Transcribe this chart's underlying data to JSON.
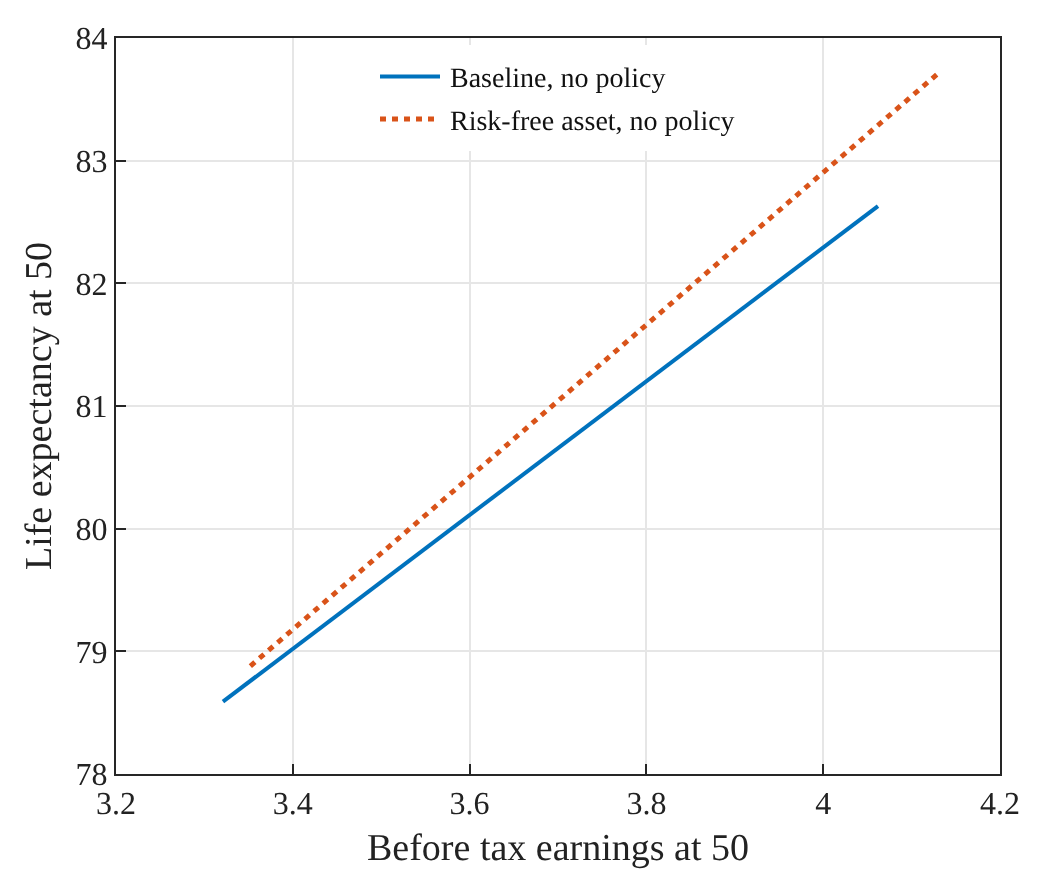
{
  "chart_data": {
    "type": "line",
    "xlabel": "Before tax earnings at 50",
    "ylabel": "Life expectancy at 50",
    "series": [
      {
        "name": "Baseline, no policy",
        "color": "#0072bd",
        "x": [
          3.321,
          4.062
        ],
        "values": [
          78.59,
          82.63
        ],
        "line_style": "solid"
      },
      {
        "name": "Risk-free asset, no policy",
        "color": "#d95319",
        "x": [
          3.352,
          4.133
        ],
        "values": [
          78.88,
          83.73
        ],
        "line_style": "dotted"
      }
    ],
    "xlim": [
      3.2,
      4.2
    ],
    "xticks": [
      3.2,
      3.4,
      3.6,
      3.8,
      4,
      4.2
    ],
    "ylim": [
      78,
      84
    ],
    "yticks": [
      78,
      79,
      80,
      81,
      82,
      83,
      84
    ],
    "grid": true,
    "legend": "top",
    "marker": "none"
  }
}
